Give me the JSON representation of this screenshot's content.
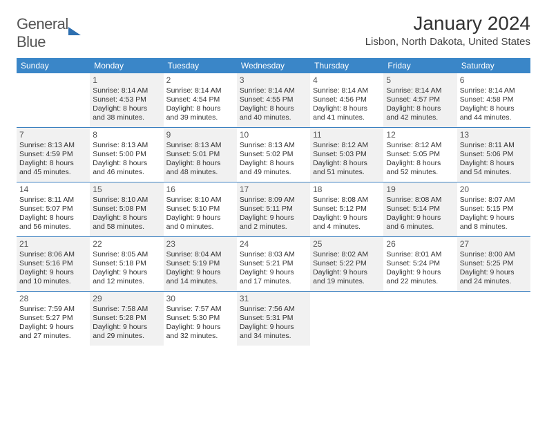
{
  "logo": {
    "part1": "General",
    "part2": "Blue"
  },
  "title": "January 2024",
  "location": "Lisbon, North Dakota, United States",
  "colors": {
    "header_bg": "#3a86c8",
    "header_text": "#ffffff",
    "border": "#3a7fbf",
    "grey_cell": "#f1f1f1",
    "text": "#333333"
  },
  "day_headers": [
    "Sunday",
    "Monday",
    "Tuesday",
    "Wednesday",
    "Thursday",
    "Friday",
    "Saturday"
  ],
  "weeks": [
    [
      {
        "day": "",
        "grey": false,
        "lines": []
      },
      {
        "day": "1",
        "grey": true,
        "lines": [
          "Sunrise: 8:14 AM",
          "Sunset: 4:53 PM",
          "Daylight: 8 hours",
          "and 38 minutes."
        ]
      },
      {
        "day": "2",
        "grey": false,
        "lines": [
          "Sunrise: 8:14 AM",
          "Sunset: 4:54 PM",
          "Daylight: 8 hours",
          "and 39 minutes."
        ]
      },
      {
        "day": "3",
        "grey": true,
        "lines": [
          "Sunrise: 8:14 AM",
          "Sunset: 4:55 PM",
          "Daylight: 8 hours",
          "and 40 minutes."
        ]
      },
      {
        "day": "4",
        "grey": false,
        "lines": [
          "Sunrise: 8:14 AM",
          "Sunset: 4:56 PM",
          "Daylight: 8 hours",
          "and 41 minutes."
        ]
      },
      {
        "day": "5",
        "grey": true,
        "lines": [
          "Sunrise: 8:14 AM",
          "Sunset: 4:57 PM",
          "Daylight: 8 hours",
          "and 42 minutes."
        ]
      },
      {
        "day": "6",
        "grey": false,
        "lines": [
          "Sunrise: 8:14 AM",
          "Sunset: 4:58 PM",
          "Daylight: 8 hours",
          "and 44 minutes."
        ]
      }
    ],
    [
      {
        "day": "7",
        "grey": true,
        "lines": [
          "Sunrise: 8:13 AM",
          "Sunset: 4:59 PM",
          "Daylight: 8 hours",
          "and 45 minutes."
        ]
      },
      {
        "day": "8",
        "grey": false,
        "lines": [
          "Sunrise: 8:13 AM",
          "Sunset: 5:00 PM",
          "Daylight: 8 hours",
          "and 46 minutes."
        ]
      },
      {
        "day": "9",
        "grey": true,
        "lines": [
          "Sunrise: 8:13 AM",
          "Sunset: 5:01 PM",
          "Daylight: 8 hours",
          "and 48 minutes."
        ]
      },
      {
        "day": "10",
        "grey": false,
        "lines": [
          "Sunrise: 8:13 AM",
          "Sunset: 5:02 PM",
          "Daylight: 8 hours",
          "and 49 minutes."
        ]
      },
      {
        "day": "11",
        "grey": true,
        "lines": [
          "Sunrise: 8:12 AM",
          "Sunset: 5:03 PM",
          "Daylight: 8 hours",
          "and 51 minutes."
        ]
      },
      {
        "day": "12",
        "grey": false,
        "lines": [
          "Sunrise: 8:12 AM",
          "Sunset: 5:05 PM",
          "Daylight: 8 hours",
          "and 52 minutes."
        ]
      },
      {
        "day": "13",
        "grey": true,
        "lines": [
          "Sunrise: 8:11 AM",
          "Sunset: 5:06 PM",
          "Daylight: 8 hours",
          "and 54 minutes."
        ]
      }
    ],
    [
      {
        "day": "14",
        "grey": false,
        "lines": [
          "Sunrise: 8:11 AM",
          "Sunset: 5:07 PM",
          "Daylight: 8 hours",
          "and 56 minutes."
        ]
      },
      {
        "day": "15",
        "grey": true,
        "lines": [
          "Sunrise: 8:10 AM",
          "Sunset: 5:08 PM",
          "Daylight: 8 hours",
          "and 58 minutes."
        ]
      },
      {
        "day": "16",
        "grey": false,
        "lines": [
          "Sunrise: 8:10 AM",
          "Sunset: 5:10 PM",
          "Daylight: 9 hours",
          "and 0 minutes."
        ]
      },
      {
        "day": "17",
        "grey": true,
        "lines": [
          "Sunrise: 8:09 AM",
          "Sunset: 5:11 PM",
          "Daylight: 9 hours",
          "and 2 minutes."
        ]
      },
      {
        "day": "18",
        "grey": false,
        "lines": [
          "Sunrise: 8:08 AM",
          "Sunset: 5:12 PM",
          "Daylight: 9 hours",
          "and 4 minutes."
        ]
      },
      {
        "day": "19",
        "grey": true,
        "lines": [
          "Sunrise: 8:08 AM",
          "Sunset: 5:14 PM",
          "Daylight: 9 hours",
          "and 6 minutes."
        ]
      },
      {
        "day": "20",
        "grey": false,
        "lines": [
          "Sunrise: 8:07 AM",
          "Sunset: 5:15 PM",
          "Daylight: 9 hours",
          "and 8 minutes."
        ]
      }
    ],
    [
      {
        "day": "21",
        "grey": true,
        "lines": [
          "Sunrise: 8:06 AM",
          "Sunset: 5:16 PM",
          "Daylight: 9 hours",
          "and 10 minutes."
        ]
      },
      {
        "day": "22",
        "grey": false,
        "lines": [
          "Sunrise: 8:05 AM",
          "Sunset: 5:18 PM",
          "Daylight: 9 hours",
          "and 12 minutes."
        ]
      },
      {
        "day": "23",
        "grey": true,
        "lines": [
          "Sunrise: 8:04 AM",
          "Sunset: 5:19 PM",
          "Daylight: 9 hours",
          "and 14 minutes."
        ]
      },
      {
        "day": "24",
        "grey": false,
        "lines": [
          "Sunrise: 8:03 AM",
          "Sunset: 5:21 PM",
          "Daylight: 9 hours",
          "and 17 minutes."
        ]
      },
      {
        "day": "25",
        "grey": true,
        "lines": [
          "Sunrise: 8:02 AM",
          "Sunset: 5:22 PM",
          "Daylight: 9 hours",
          "and 19 minutes."
        ]
      },
      {
        "day": "26",
        "grey": false,
        "lines": [
          "Sunrise: 8:01 AM",
          "Sunset: 5:24 PM",
          "Daylight: 9 hours",
          "and 22 minutes."
        ]
      },
      {
        "day": "27",
        "grey": true,
        "lines": [
          "Sunrise: 8:00 AM",
          "Sunset: 5:25 PM",
          "Daylight: 9 hours",
          "and 24 minutes."
        ]
      }
    ],
    [
      {
        "day": "28",
        "grey": false,
        "lines": [
          "Sunrise: 7:59 AM",
          "Sunset: 5:27 PM",
          "Daylight: 9 hours",
          "and 27 minutes."
        ]
      },
      {
        "day": "29",
        "grey": true,
        "lines": [
          "Sunrise: 7:58 AM",
          "Sunset: 5:28 PM",
          "Daylight: 9 hours",
          "and 29 minutes."
        ]
      },
      {
        "day": "30",
        "grey": false,
        "lines": [
          "Sunrise: 7:57 AM",
          "Sunset: 5:30 PM",
          "Daylight: 9 hours",
          "and 32 minutes."
        ]
      },
      {
        "day": "31",
        "grey": true,
        "lines": [
          "Sunrise: 7:56 AM",
          "Sunset: 5:31 PM",
          "Daylight: 9 hours",
          "and 34 minutes."
        ]
      },
      {
        "day": "",
        "grey": false,
        "lines": []
      },
      {
        "day": "",
        "grey": false,
        "lines": []
      },
      {
        "day": "",
        "grey": false,
        "lines": []
      }
    ]
  ]
}
